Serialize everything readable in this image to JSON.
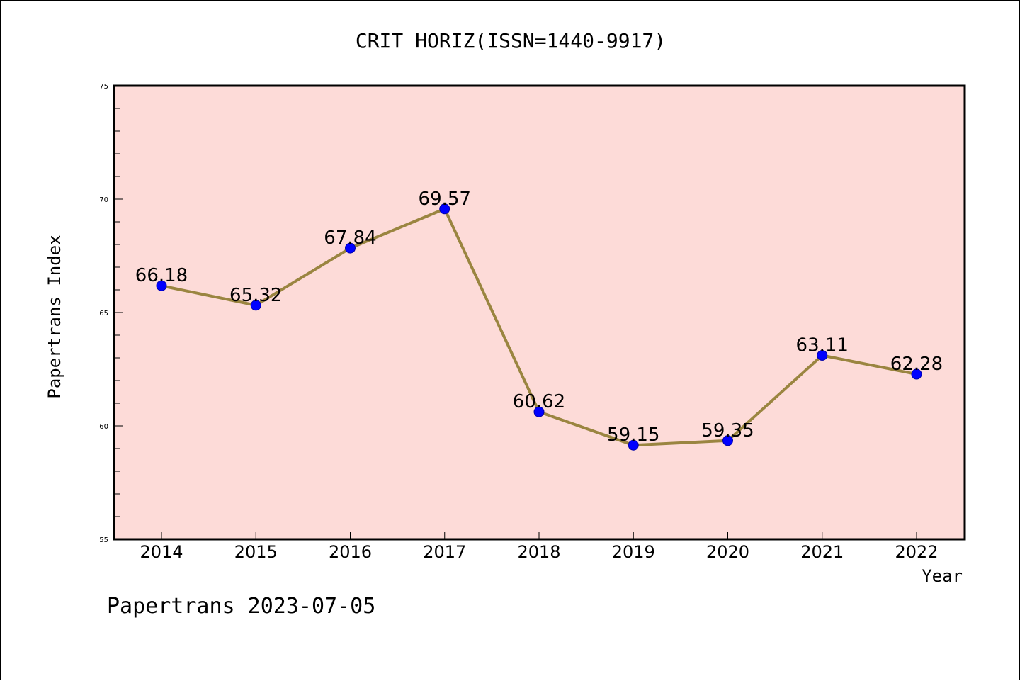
{
  "chart_data": {
    "type": "line",
    "title": "CRIT HORIZ(ISSN=1440-9917)",
    "xlabel": "Year",
    "ylabel": "Papertrans Index",
    "categories": [
      "2014",
      "2015",
      "2016",
      "2017",
      "2018",
      "2019",
      "2020",
      "2021",
      "2022"
    ],
    "series": [
      {
        "values": [
          66.18,
          65.32,
          67.84,
          69.57,
          60.62,
          59.15,
          59.35,
          63.11,
          62.28
        ],
        "labels": [
          "66.18",
          "65.32",
          "67.84",
          "69.57",
          "60.62",
          "59.15",
          "59.35",
          "63.11",
          "62.28"
        ]
      }
    ],
    "ylim": [
      55,
      75
    ],
    "yticks": [
      "55",
      "60",
      "65",
      "70",
      "75"
    ],
    "grid": false,
    "legend": "none",
    "colors": {
      "plot_background": "#fddbd8",
      "line": "#9a8540",
      "marker": "#0000ff"
    }
  },
  "footer": {
    "text": "Papertrans 2023-07-05"
  }
}
